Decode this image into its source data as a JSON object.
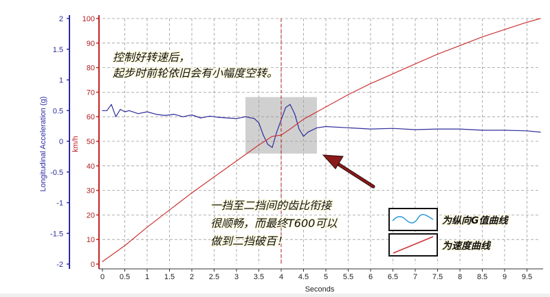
{
  "chart_data": {
    "type": "line",
    "xlabel": "Seconds",
    "ylabel_left": "Longitudinal Acceleration (g)",
    "ylabel_right": "km/h",
    "xlim": [
      0,
      9.8
    ],
    "ylim_left": [
      -2,
      2
    ],
    "ylim_right": [
      0,
      100
    ],
    "x_ticks": [
      "0",
      "0.5",
      "1",
      "1.5",
      "2",
      "2.5",
      "3",
      "3.5",
      "4",
      "4.5",
      "5",
      "5.5",
      "6",
      "6.5",
      "7",
      "7.5",
      "8",
      "8.5",
      "9",
      "9.5"
    ],
    "left_ticks": [
      "-2",
      "-1.5",
      "-1",
      "-0.5",
      "0",
      "0.5",
      "1",
      "1.5",
      "2"
    ],
    "right_ticks": [
      "0",
      "10",
      "20",
      "30",
      "40",
      "50",
      "60",
      "70",
      "80",
      "90",
      "100"
    ],
    "grid": true,
    "shift_marker_x": 4.0,
    "highlight_x": [
      3.2,
      4.8
    ],
    "highlight_right_y": [
      45,
      68
    ],
    "series": [
      {
        "name": "为纵向G值曲线",
        "axis": "left",
        "color": "#2c2c9c",
        "x": [
          0,
          0.1,
          0.2,
          0.3,
          0.4,
          0.5,
          0.6,
          0.8,
          1.0,
          1.2,
          1.4,
          1.6,
          1.8,
          2.0,
          2.2,
          2.4,
          2.6,
          2.8,
          3.0,
          3.2,
          3.4,
          3.5,
          3.6,
          3.7,
          3.8,
          3.9,
          4.0,
          4.1,
          4.2,
          4.3,
          4.4,
          4.5,
          4.6,
          4.8,
          5.0,
          5.5,
          6.0,
          6.5,
          7.0,
          7.5,
          8.0,
          8.5,
          9.0,
          9.5,
          9.8
        ],
        "y": [
          0.5,
          0.5,
          0.6,
          0.4,
          0.52,
          0.48,
          0.5,
          0.45,
          0.48,
          0.44,
          0.42,
          0.44,
          0.4,
          0.43,
          0.38,
          0.41,
          0.39,
          0.38,
          0.37,
          0.4,
          0.37,
          0.3,
          0.1,
          -0.05,
          -0.1,
          0.15,
          0.35,
          0.55,
          0.6,
          0.45,
          0.2,
          0.08,
          0.15,
          0.22,
          0.24,
          0.22,
          0.2,
          0.21,
          0.19,
          0.2,
          0.2,
          0.18,
          0.18,
          0.17,
          0.15
        ]
      },
      {
        "name": "为速度曲线",
        "axis": "right",
        "color": "#cc3333",
        "x": [
          0,
          0.5,
          1.0,
          1.5,
          2.0,
          2.5,
          3.0,
          3.5,
          3.8,
          4.0,
          4.2,
          4.5,
          5.0,
          5.5,
          6.0,
          6.5,
          7.0,
          7.5,
          8.0,
          8.5,
          9.0,
          9.5,
          9.8
        ],
        "y": [
          1,
          7.5,
          15,
          22,
          29,
          35.5,
          42,
          48.5,
          52,
          52.5,
          55,
          59,
          64,
          69,
          73.5,
          77.5,
          81.5,
          85.5,
          89,
          92.5,
          95.5,
          98.5,
          100
        ]
      }
    ]
  },
  "annotations": {
    "top_note_line1": "控制好转速后，",
    "top_note_line2": "起步时前轮依旧会有小幅度空转。",
    "mid_note_line1": "一挡至二挡间的齿比衔接",
    "mid_note_line2": "很顺畅，而最终T600可以",
    "mid_note_line3": "做到二挡破百！"
  },
  "legend": {
    "accel_label": "为纵向G值曲线",
    "speed_label": "为速度曲线",
    "accel_color": "#2a9ad8",
    "speed_color": "#cc3333"
  },
  "colors": {
    "left_axis": "#2a2aa0",
    "right_axis": "#c02020",
    "grid": "#9a9a9a",
    "highlight": "#c8c8c8",
    "arrow": "#8b1a1a"
  }
}
